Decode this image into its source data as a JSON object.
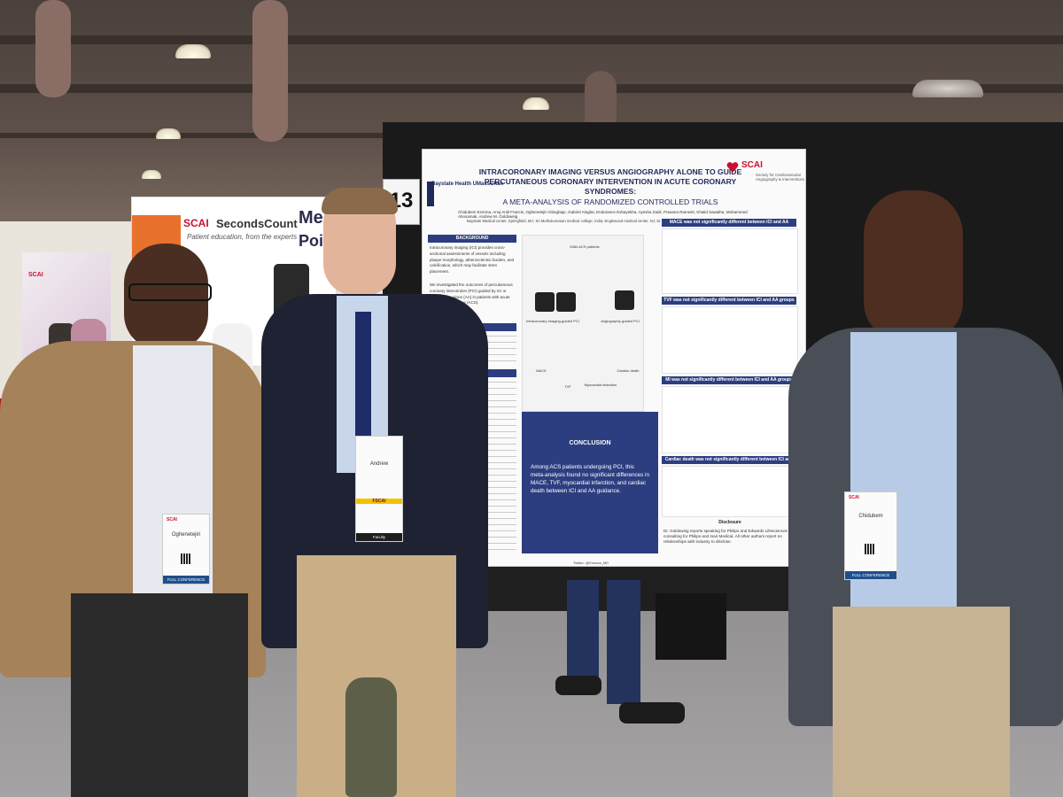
{
  "scene": {
    "booth_banner": {
      "brand_scai": "SCAI",
      "brand_product": "SecondsCount",
      "tagline": "Patient education, from the experts",
      "headline_line1": "Mee",
      "headline_line2": "Point-o"
    },
    "left_panel_logo": "SCAI",
    "poster_number": "13"
  },
  "poster": {
    "institution": "Baystate Health UMassChan",
    "title": "INTRACORONARY IMAGING VERSUS ANGIOGRAPHY ALONE TO GUIDE PERCUTANEOUS CORONARY INTERVENTION IN ACUTE CORONARY SYNDROMES:",
    "subtitle": "A META-ANALYSIS OF RANDOMIZED CONTROLLED TRIALS",
    "authors": "Chidubem Ezenna, Anoj Antil Francis, Oghenetejiri Gbegbaje, Gabriel Alugba, Endurance Evbayekha, Ayesha Zaidi, Prasana Ramesh, Khalid Sawalha, Mohammed Abosamak, Andrew M. Goldsweig",
    "affiliation": "Baystate Medical center, Springfield, MA; Sri Muthukumaran medical college, India; Englewood medical center, NJ; St. Luke's hospital, MO",
    "society_logo": "SCAI",
    "society_tag": "Society for Cardiovascular Angiography & Interventions",
    "sections": {
      "background": "BACKGROUND",
      "background_text": "Intracoronary imaging (ICI) provides cross-sectional assessments of vessels including plaque morphology, atherosclerotic burden, and calcification, which may facilitate stent placement.",
      "background_text2": "We investigated the outcomes of percutaneous coronary intervention (PCI) guided by ICI or angiography alone (AA) in patients with acute coronary syndromes (ACS).",
      "methods": "METHODS",
      "results": "RESULTS",
      "conclusion": "CONCLUSION",
      "conclusion_text": "Among ACS patients undergoing PCI, this meta-analysis found no significant differences in MACE, TVF, myocardial infarction, and cardiac death between ICI and AA guidance.",
      "disclosure": "Disclosure",
      "disclosure_text": "Dr. Goldsweig reports speaking for Philips and Edwards Lifesciences and consulting for Philips and Inari Medical. All other authors report no relationships with industry to disclose.",
      "twitter": "Twitter: @Ezenna_MD"
    },
    "diagram": {
      "top": "5484 ACS patients",
      "left": "Intracoronary imaging-guided PCI",
      "right": "Angiography-guided PCI",
      "mace": "MACE",
      "tvf": "TVF",
      "mi": "Myocardial infarction",
      "cd": "Cardiac death"
    },
    "plot_headers": [
      "MACE was not significantly different between ICI and AA groups",
      "TVF was not significantly different between ICI and AA groups",
      "MI was not significantly different between ICI and AA groups",
      "Cardiac death was not significantly different between ICI and AA groups"
    ]
  },
  "people": {
    "left_badge_name": "Oghenetejiri",
    "left_badge_footer": "FULL CONFERENCE",
    "middle_badge_name": "Andrew",
    "middle_badge_ribbon": "FSCAI",
    "middle_badge_footer": "Faculty",
    "right_badge_name": "Chidubem",
    "right_badge_footer": "FULL CONFERENCE"
  },
  "colors": {
    "poster_navy": "#2c3e80",
    "scai_red": "#c8102e",
    "board_black": "#1a1a1a"
  }
}
